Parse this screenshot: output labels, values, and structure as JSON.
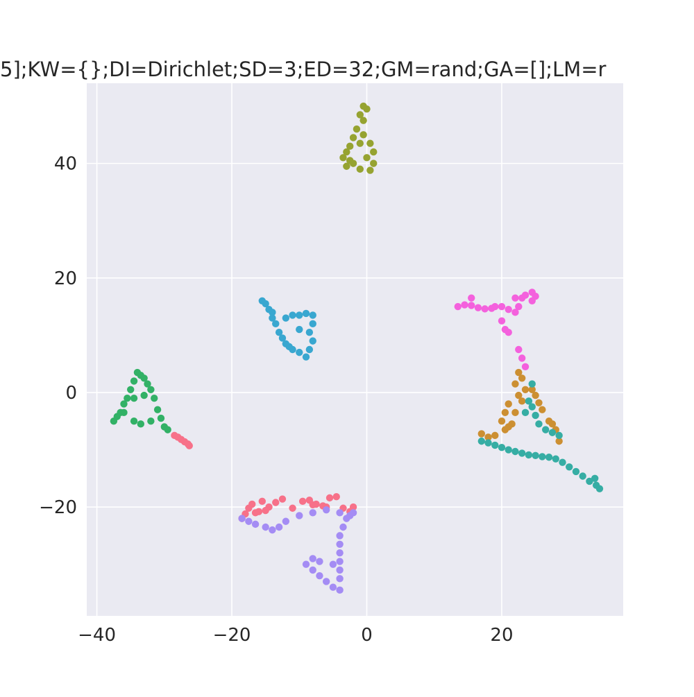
{
  "chart_data": {
    "type": "scatter",
    "title": "5];KW={};DI=Dirichlet;SD=3;ED=32;GM=rand;GA=[];LM=r",
    "xlabel": "",
    "ylabel": "",
    "xlim": [
      -41.5,
      38
    ],
    "ylim": [
      -39,
      54
    ],
    "xticks": [
      -40,
      -20,
      0,
      20
    ],
    "xtick_labels": [
      "−40",
      "−20",
      "0",
      "20"
    ],
    "yticks": [
      -20,
      0,
      20,
      40
    ],
    "ytick_labels": [
      "−20",
      "0",
      "20",
      "40"
    ],
    "grid": true,
    "background": "#eaeaf2",
    "grid_color": "#ffffff",
    "series": [
      {
        "color": "#f77189",
        "points": [
          [
            -28.5,
            -7.5
          ],
          [
            -28.0,
            -7.8
          ],
          [
            -27.5,
            -8.2
          ],
          [
            -27.0,
            -8.6
          ],
          [
            -26.5,
            -9.0
          ],
          [
            -26.3,
            -9.3
          ],
          [
            -18.5,
            -22.0
          ],
          [
            -18.0,
            -21.2
          ],
          [
            -17.5,
            -20.2
          ],
          [
            -17.0,
            -19.5
          ],
          [
            -16.0,
            -20.8
          ],
          [
            -15.5,
            -19.0
          ],
          [
            -14.5,
            -20.0
          ],
          [
            -13.5,
            -19.2
          ],
          [
            -12.5,
            -18.6
          ],
          [
            -11.0,
            -20.2
          ],
          [
            -9.5,
            -19.0
          ],
          [
            -8.5,
            -18.8
          ],
          [
            -7.5,
            -19.5
          ],
          [
            -6.5,
            -19.8
          ],
          [
            -5.5,
            -18.4
          ],
          [
            -4.5,
            -18.2
          ],
          [
            -3.5,
            -20.2
          ],
          [
            -2.5,
            -20.8
          ],
          [
            -2.0,
            -20.0
          ],
          [
            -16.5,
            -21.0
          ],
          [
            -15.0,
            -20.6
          ],
          [
            -8.0,
            -19.6
          ],
          [
            -6.0,
            -20.0
          ]
        ]
      },
      {
        "color": "#cc8f32",
        "points": [
          [
            22.5,
            3.5
          ],
          [
            23.0,
            2.5
          ],
          [
            22.0,
            1.5
          ],
          [
            23.5,
            0.5
          ],
          [
            22.5,
            -0.5
          ],
          [
            21.0,
            -2.0
          ],
          [
            20.5,
            -3.5
          ],
          [
            20.0,
            -5.0
          ],
          [
            21.5,
            -5.5
          ],
          [
            20.5,
            -6.5
          ],
          [
            19.0,
            -7.5
          ],
          [
            18.0,
            -7.8
          ],
          [
            17.0,
            -7.2
          ],
          [
            24.5,
            0.5
          ],
          [
            25.0,
            -0.5
          ],
          [
            26.0,
            -3.0
          ],
          [
            27.0,
            -5.0
          ],
          [
            27.5,
            -5.5
          ],
          [
            28.0,
            -6.5
          ],
          [
            28.5,
            -8.5
          ],
          [
            22.0,
            -3.5
          ],
          [
            23.0,
            -1.5
          ],
          [
            21.0,
            -6.0
          ],
          [
            25.5,
            -1.8
          ]
        ]
      },
      {
        "color": "#96a331",
        "points": [
          [
            -0.5,
            50.0
          ],
          [
            0.0,
            49.5
          ],
          [
            -1.0,
            48.5
          ],
          [
            -0.5,
            47.5
          ],
          [
            -1.5,
            46.0
          ],
          [
            -2.0,
            44.5
          ],
          [
            -2.5,
            43.0
          ],
          [
            -3.0,
            42.0
          ],
          [
            -3.5,
            41.0
          ],
          [
            -3.0,
            39.5
          ],
          [
            -2.0,
            40.0
          ],
          [
            -1.0,
            39.0
          ],
          [
            0.5,
            38.8
          ],
          [
            1.0,
            40.0
          ],
          [
            1.0,
            42.0
          ],
          [
            0.5,
            43.5
          ],
          [
            0.0,
            41.0
          ],
          [
            -1.0,
            43.5
          ],
          [
            -2.5,
            40.5
          ],
          [
            -0.5,
            45.0
          ]
        ]
      },
      {
        "color": "#32b166",
        "points": [
          [
            -37.5,
            -5.0
          ],
          [
            -37.0,
            -4.2
          ],
          [
            -36.5,
            -3.5
          ],
          [
            -36.0,
            -2.0
          ],
          [
            -35.5,
            -1.0
          ],
          [
            -35.0,
            0.5
          ],
          [
            -34.5,
            2.0
          ],
          [
            -34.0,
            3.5
          ],
          [
            -33.5,
            3.0
          ],
          [
            -33.0,
            2.5
          ],
          [
            -32.5,
            1.5
          ],
          [
            -32.0,
            0.5
          ],
          [
            -31.5,
            -1.0
          ],
          [
            -31.0,
            -3.0
          ],
          [
            -30.5,
            -4.5
          ],
          [
            -30.0,
            -6.0
          ],
          [
            -29.5,
            -6.5
          ],
          [
            -32.0,
            -5.0
          ],
          [
            -33.5,
            -5.5
          ],
          [
            -34.5,
            -5.0
          ],
          [
            -36.0,
            -3.5
          ],
          [
            -34.5,
            -1.0
          ],
          [
            -33.0,
            -0.5
          ]
        ]
      },
      {
        "color": "#36ada4",
        "points": [
          [
            23.5,
            -3.5
          ],
          [
            24.5,
            -2.5
          ],
          [
            24.0,
            -1.5
          ],
          [
            24.5,
            1.5
          ],
          [
            25.0,
            -4.0
          ],
          [
            25.5,
            -5.5
          ],
          [
            26.5,
            -6.5
          ],
          [
            27.5,
            -7.0
          ],
          [
            28.5,
            -7.5
          ],
          [
            17.0,
            -8.5
          ],
          [
            18.0,
            -8.8
          ],
          [
            19.0,
            -9.2
          ],
          [
            20.0,
            -9.6
          ],
          [
            21.0,
            -10.0
          ],
          [
            22.0,
            -10.3
          ],
          [
            23.0,
            -10.6
          ],
          [
            24.0,
            -10.9
          ],
          [
            25.0,
            -11.0
          ],
          [
            26.0,
            -11.2
          ],
          [
            27.0,
            -11.3
          ],
          [
            28.0,
            -11.6
          ],
          [
            29.0,
            -12.2
          ],
          [
            30.0,
            -13.0
          ],
          [
            31.0,
            -13.8
          ],
          [
            32.0,
            -14.6
          ],
          [
            33.0,
            -15.5
          ],
          [
            34.0,
            -16.2
          ],
          [
            34.5,
            -16.8
          ],
          [
            33.8,
            -15.0
          ]
        ]
      },
      {
        "color": "#39a7d0",
        "points": [
          [
            -15.5,
            16.0
          ],
          [
            -15.0,
            15.5
          ],
          [
            -14.5,
            14.5
          ],
          [
            -14.0,
            13.0
          ],
          [
            -13.5,
            12.0
          ],
          [
            -13.0,
            10.5
          ],
          [
            -12.5,
            9.5
          ],
          [
            -12.0,
            8.5
          ],
          [
            -11.0,
            7.5
          ],
          [
            -10.0,
            7.0
          ],
          [
            -9.0,
            6.2
          ],
          [
            -8.5,
            7.5
          ],
          [
            -8.0,
            9.0
          ],
          [
            -8.5,
            10.5
          ],
          [
            -8.0,
            12.0
          ],
          [
            -8.0,
            13.5
          ],
          [
            -9.0,
            13.8
          ],
          [
            -10.0,
            13.5
          ],
          [
            -11.0,
            13.5
          ],
          [
            -12.0,
            13.0
          ],
          [
            -14.0,
            14.0
          ],
          [
            -10.0,
            11.0
          ],
          [
            -11.5,
            8.0
          ]
        ]
      },
      {
        "color": "#a48cf4",
        "points": [
          [
            -18.5,
            -22.0
          ],
          [
            -17.5,
            -22.5
          ],
          [
            -16.5,
            -23.0
          ],
          [
            -15.0,
            -23.5
          ],
          [
            -14.0,
            -24.0
          ],
          [
            -13.0,
            -23.5
          ],
          [
            -12.0,
            -22.5
          ],
          [
            -10.0,
            -21.5
          ],
          [
            -8.0,
            -21.0
          ],
          [
            -6.0,
            -20.5
          ],
          [
            -4.0,
            -21.0
          ],
          [
            -2.5,
            -21.5
          ],
          [
            -2.0,
            -21.0
          ],
          [
            -3.0,
            -22.0
          ],
          [
            -3.5,
            -23.5
          ],
          [
            -4.0,
            -25.0
          ],
          [
            -4.0,
            -26.5
          ],
          [
            -4.0,
            -28.0
          ],
          [
            -4.0,
            -29.5
          ],
          [
            -4.0,
            -31.0
          ],
          [
            -4.0,
            -32.5
          ],
          [
            -4.0,
            -34.5
          ],
          [
            -5.0,
            -34.0
          ],
          [
            -6.0,
            -33.0
          ],
          [
            -7.0,
            -32.0
          ],
          [
            -8.0,
            -31.0
          ],
          [
            -9.0,
            -30.0
          ],
          [
            -8.0,
            -29.0
          ],
          [
            -7.0,
            -29.5
          ],
          [
            -5.0,
            -30.0
          ]
        ]
      },
      {
        "color": "#f461dd",
        "points": [
          [
            13.5,
            15.0
          ],
          [
            14.5,
            15.3
          ],
          [
            15.5,
            15.2
          ],
          [
            16.5,
            14.8
          ],
          [
            17.5,
            14.6
          ],
          [
            18.5,
            14.7
          ],
          [
            19.0,
            15.0
          ],
          [
            20.0,
            15.0
          ],
          [
            21.0,
            14.5
          ],
          [
            22.0,
            14.0
          ],
          [
            22.5,
            15.0
          ],
          [
            23.0,
            16.5
          ],
          [
            23.5,
            17.0
          ],
          [
            24.5,
            17.5
          ],
          [
            25.0,
            16.8
          ],
          [
            24.5,
            16.0
          ],
          [
            15.5,
            16.5
          ],
          [
            20.0,
            12.5
          ],
          [
            20.5,
            11.0
          ],
          [
            21.0,
            10.5
          ],
          [
            22.5,
            7.5
          ],
          [
            23.0,
            6.0
          ],
          [
            23.5,
            4.5
          ],
          [
            22.0,
            16.5
          ]
        ]
      }
    ]
  }
}
